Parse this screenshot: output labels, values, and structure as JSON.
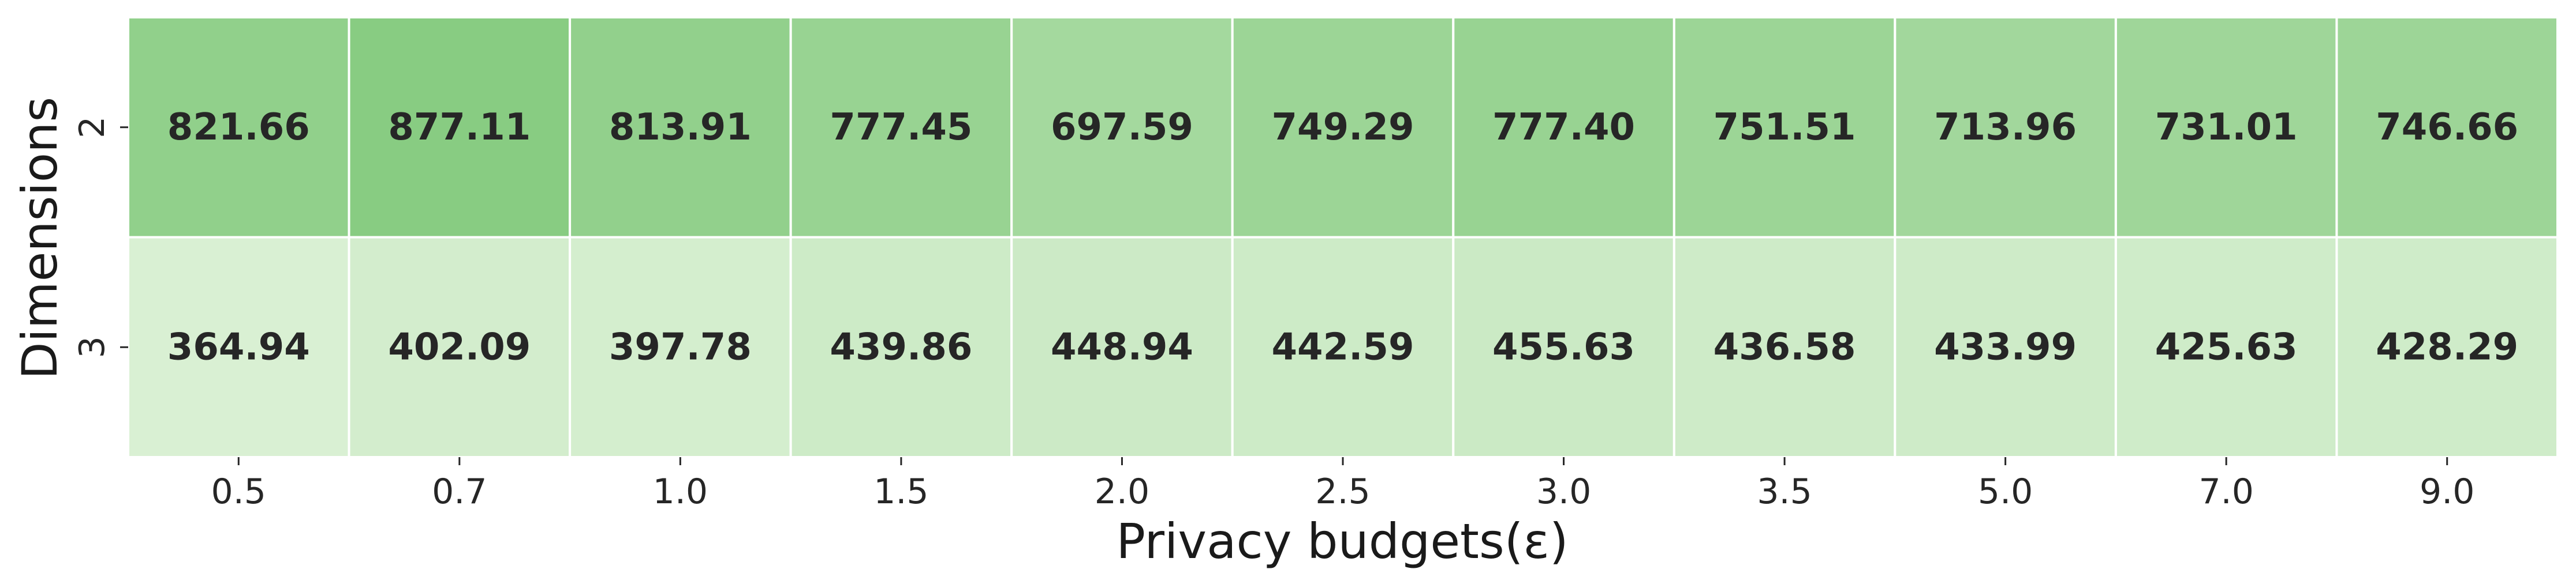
{
  "chart_data": {
    "type": "heatmap",
    "xlabel": "Privacy budgets(ε)",
    "ylabel": "Dimensions",
    "x_categories": [
      "0.5",
      "0.7",
      "1.0",
      "1.5",
      "2.0",
      "2.5",
      "3.0",
      "3.5",
      "5.0",
      "7.0",
      "9.0"
    ],
    "y_categories": [
      "2",
      "3"
    ],
    "values": [
      [
        821.66,
        877.11,
        813.91,
        777.45,
        697.59,
        749.29,
        777.4,
        751.51,
        713.96,
        731.01,
        746.66
      ],
      [
        364.94,
        402.09,
        397.78,
        439.86,
        448.94,
        442.59,
        455.63,
        436.58,
        433.99,
        425.63,
        428.29
      ]
    ],
    "value_labels": [
      [
        "821.66",
        "877.11",
        "813.91",
        "777.45",
        "697.59",
        "749.29",
        "777.40",
        "751.51",
        "713.96",
        "731.01",
        "746.66"
      ],
      [
        "364.94",
        "402.09",
        "397.78",
        "439.86",
        "448.94",
        "442.59",
        "455.63",
        "436.58",
        "433.99",
        "425.63",
        "428.29"
      ]
    ],
    "colormap": "Greens",
    "color_low": "#d9f0d3",
    "color_high": "#88cc82",
    "cell_border_color": "#ffffff",
    "colorbar": false
  }
}
